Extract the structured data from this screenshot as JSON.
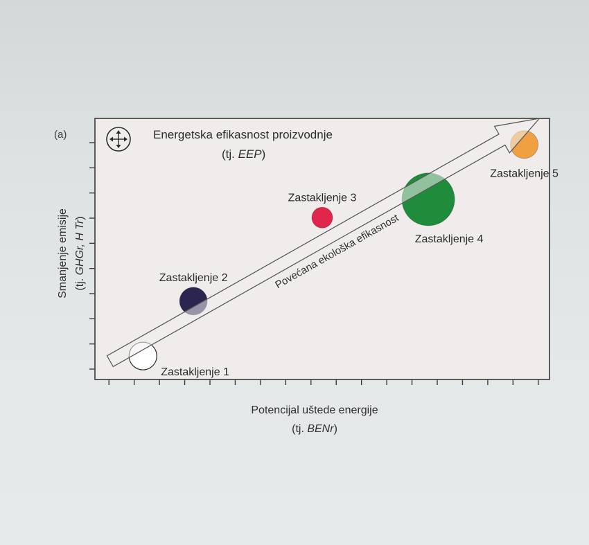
{
  "panel_label": "(a)",
  "legend_icon": "compass-arrows-icon",
  "chart_data": {
    "type": "scatter",
    "title": "Energetska efikasnost proizvodnje",
    "title_sub_prefix": "(tj. ",
    "title_sub_abbr": "EEP",
    "title_sub_suffix": ")",
    "xlabel": "Potencijal uštede energije",
    "xlabel_sub_prefix": "(tj. ",
    "xlabel_sub_abbr": "BENr",
    "xlabel_sub_suffix": ")",
    "ylabel": "Smanjenje emisije",
    "ylabel_sub_prefix": "(tj. ",
    "ylabel_sub_abbr": "GHGr, H Tr",
    "ylabel_sub_suffix": ")",
    "xlim": [
      0,
      18
    ],
    "ylim": [
      0,
      10
    ],
    "x_ticks": 18,
    "y_ticks": 10,
    "arrow_label": "Povećana ekološka efikasnost",
    "arrow": {
      "from": [
        0.6,
        0.7
      ],
      "to": [
        17.6,
        10.0
      ]
    },
    "points": [
      {
        "name": "Zastakljenje 1",
        "x": 1.9,
        "y": 0.9,
        "size": 20,
        "color": "#ffffff",
        "label_pos": "right-below"
      },
      {
        "name": "Zastakljenje 2",
        "x": 3.9,
        "y": 3.0,
        "size": 20,
        "color": "#2b2550",
        "label_pos": "above"
      },
      {
        "name": "Zastakljenje 3",
        "x": 9.0,
        "y": 6.2,
        "size": 15,
        "color": "#e0264a",
        "label_pos": "above"
      },
      {
        "name": "Zastakljenje 4",
        "x": 13.2,
        "y": 6.9,
        "size": 38,
        "color": "#1e8c3a",
        "label_pos": "below-right"
      },
      {
        "name": "Zastakljenje 5",
        "x": 17.0,
        "y": 9.0,
        "size": 20,
        "color": "#f0a040",
        "label_pos": "below"
      }
    ]
  }
}
